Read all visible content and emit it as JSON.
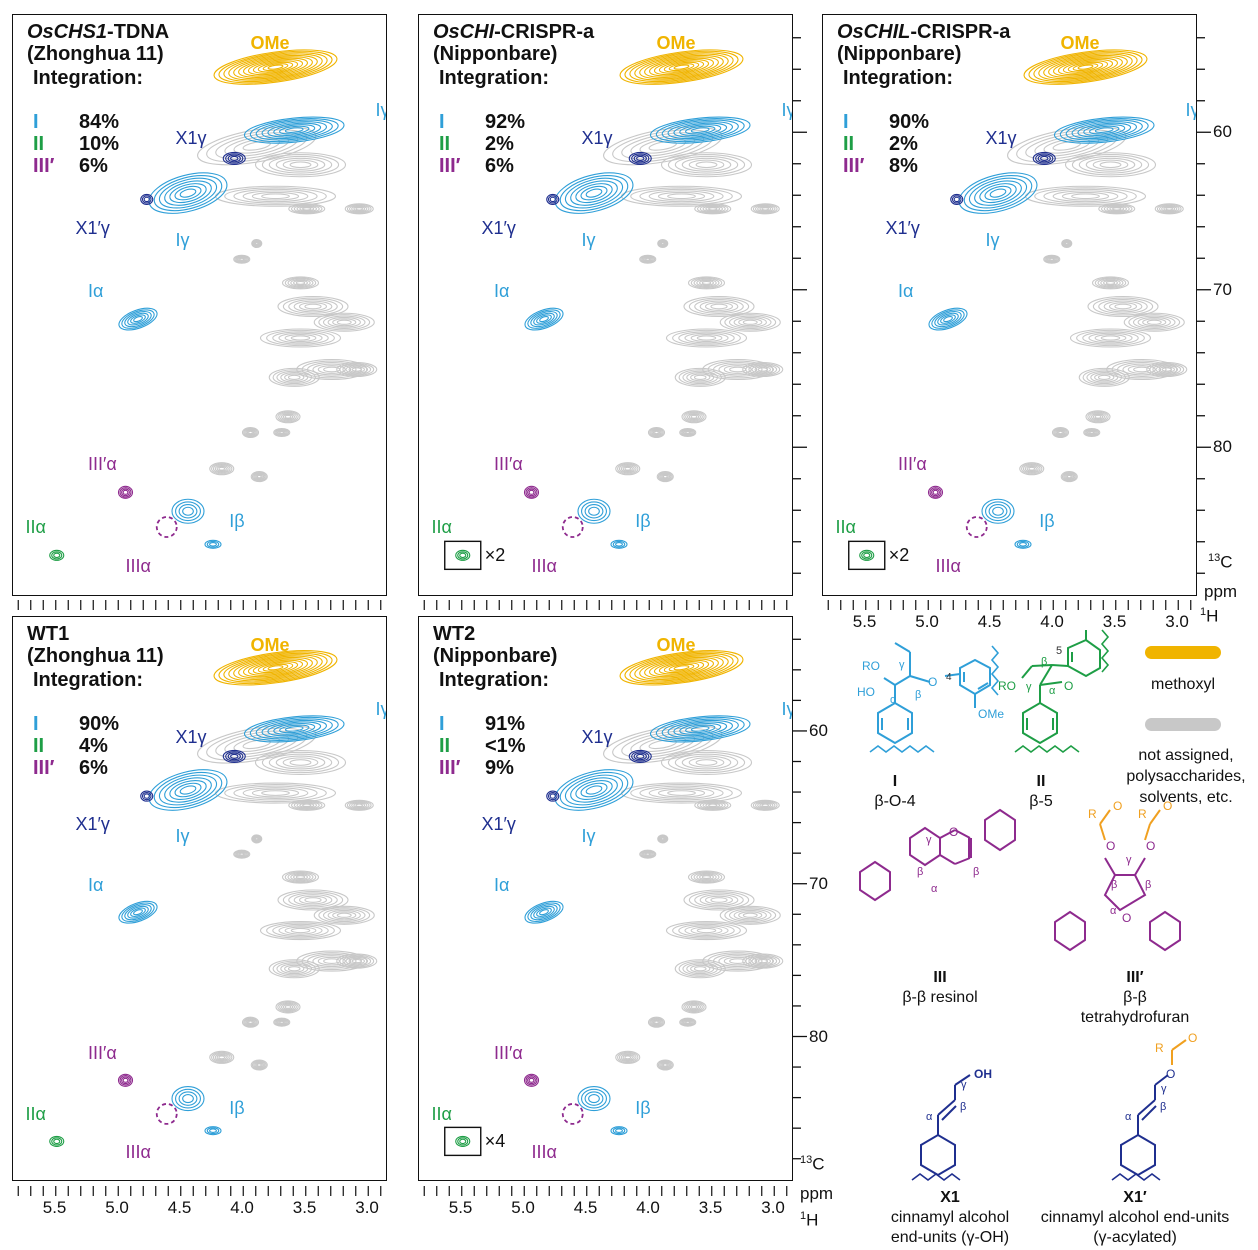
{
  "colors": {
    "I": "#2f9fd8",
    "II": "#1e9e46",
    "III": "#8e2a8e",
    "X1": "#1f2f8f",
    "OMe": "#f0b400",
    "unassigned": "#c8c8c8",
    "R": "#f0a020"
  },
  "panels": [
    {
      "id": "oschs1",
      "title_italic": "OsCHS1",
      "title_rest": "-TDNA",
      "subtitle": "(Zhonghua 11)",
      "integration_label": "Integration:",
      "I": "84%",
      "II": "10%",
      "III": "6%",
      "scale_note": ""
    },
    {
      "id": "oschi",
      "title_italic": "OsCHI",
      "title_rest": "-CRISPR-a",
      "subtitle": "(Nipponbare)",
      "integration_label": "Integration:",
      "I": "92%",
      "II": "2%",
      "III": "6%",
      "scale_note": "×2"
    },
    {
      "id": "oschil",
      "title_italic": "OsCHIL",
      "title_rest": "-CRISPR-a",
      "subtitle": "(Nipponbare)",
      "integration_label": "Integration:",
      "I": "90%",
      "II": "2%",
      "III": "8%",
      "scale_note": "×2"
    },
    {
      "id": "wt1",
      "title_italic": "",
      "title_rest": "WT1",
      "subtitle": "(Zhonghua 11)",
      "integration_label": "Integration:",
      "I": "90%",
      "II": "4%",
      "III": "6%",
      "scale_note": ""
    },
    {
      "id": "wt2",
      "title_italic": "",
      "title_rest": "WT2",
      "subtitle": "(Nipponbare)",
      "integration_label": "Integration:",
      "I": "91%",
      "II": "<1%",
      "III": "9%",
      "scale_note": "×4"
    }
  ],
  "int_labels": {
    "I": "I",
    "II": "II",
    "III": "III′"
  },
  "peak_labels": {
    "OMe": "OMe",
    "Igamma": "Iγ",
    "X1gamma": "X1γ",
    "X1pgamma": "X1′γ",
    "Ialpha": "Iα",
    "IIIpalpha": "III′α",
    "IIIalpha": "IIIα",
    "Ibeta": "Iβ",
    "IIalpha": "IIα"
  },
  "axes": {
    "x_ticks": [
      "5.5",
      "5.0",
      "4.5",
      "4.0",
      "3.5",
      "3.0"
    ],
    "y_ticks": [
      "60",
      "70",
      "80"
    ],
    "x_unit": "ppm",
    "x_nucleus": "1H",
    "y_nucleus": "13C",
    "xlim": [
      5.85,
      2.85
    ],
    "ylim": [
      53,
      89
    ]
  },
  "chart_data": {
    "type": "heatmap",
    "xlabel": "ppm ¹H",
    "ylabel": "¹³C",
    "xlim": [
      5.85,
      2.85
    ],
    "ylim": [
      53,
      89
    ],
    "x_ticks": [
      5.5,
      5.0,
      4.5,
      4.0,
      3.5,
      3.0
    ],
    "y_ticks": [
      60,
      70,
      80
    ],
    "cross_peaks": [
      {
        "name": "OMe",
        "x": 3.75,
        "y": 55.8,
        "color": "OMe"
      },
      {
        "name": "Iγ",
        "x": 3.6,
        "y": 59.8,
        "color": "I"
      },
      {
        "name": "X1γ",
        "x": 4.08,
        "y": 61.6,
        "color": "X1"
      },
      {
        "name": "X1′γ",
        "x": 4.78,
        "y": 64.2,
        "color": "X1"
      },
      {
        "name": "Iγ",
        "x": 4.3,
        "y": 64.0,
        "color": "I"
      },
      {
        "name": "Iα",
        "x": 4.85,
        "y": 71.8,
        "color": "I"
      },
      {
        "name": "III′α",
        "x": 4.95,
        "y": 82.8,
        "color": "III"
      },
      {
        "name": "IIIα",
        "x": 4.62,
        "y": 85.0,
        "color": "III"
      },
      {
        "name": "Iβ",
        "x": 4.3,
        "y": 86.1,
        "color": "I"
      },
      {
        "name": "IIα",
        "x": 5.5,
        "y": 86.8,
        "color": "II"
      }
    ]
  },
  "legend": {
    "methoxyl": "methoxyl",
    "unassigned": "not assigned, polysaccharides, solvents, etc."
  },
  "structures": {
    "I": {
      "name": "I",
      "desc": "β-O-4"
    },
    "II": {
      "name": "II",
      "desc": "β-5"
    },
    "III": {
      "name": "III",
      "desc": "β-β resinol"
    },
    "IIIp": {
      "name": "III′",
      "desc": "β-β tetrahydrofuran"
    },
    "X1": {
      "name": "X1",
      "desc": "cinnamyl alcohol end-units (γ-OH)"
    },
    "X1p": {
      "name": "X1′",
      "desc": "cinnamyl alcohol end-units (γ-acylated)"
    }
  }
}
